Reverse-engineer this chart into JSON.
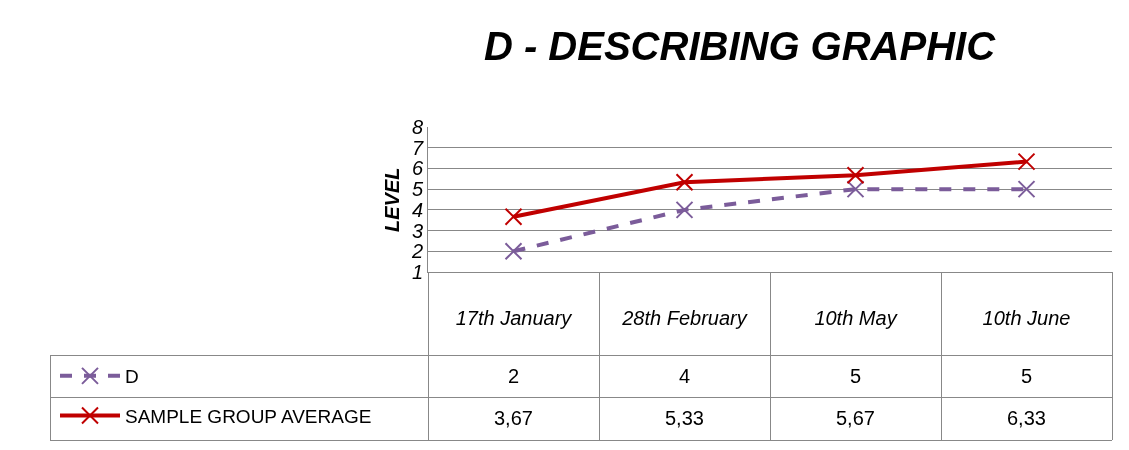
{
  "chart_data": {
    "type": "line",
    "title": "D - DESCRIBING GRAPHIC",
    "ylabel": "LEVEL",
    "categories": [
      "17th January",
      "28th February",
      "10th May",
      "10th June"
    ],
    "series": [
      {
        "name": "D",
        "color": "#7b5c9a",
        "values": [
          2,
          4,
          5,
          5
        ],
        "value_labels": [
          "2",
          "4",
          "5",
          "5"
        ],
        "line_style": "dashed",
        "marker": "cross"
      },
      {
        "name": "SAMPLE GROUP AVERAGE",
        "color": "#c00000",
        "values": [
          3.67,
          5.33,
          5.67,
          6.33
        ],
        "value_labels": [
          "3,67",
          "5,33",
          "5,67",
          "6,33"
        ],
        "line_style": "solid",
        "marker": "cross"
      }
    ],
    "ylim": [
      1,
      8
    ],
    "yticks": [
      1,
      2,
      3,
      4,
      5,
      6,
      7,
      8
    ],
    "grid": "y",
    "legend": "bottom left"
  }
}
